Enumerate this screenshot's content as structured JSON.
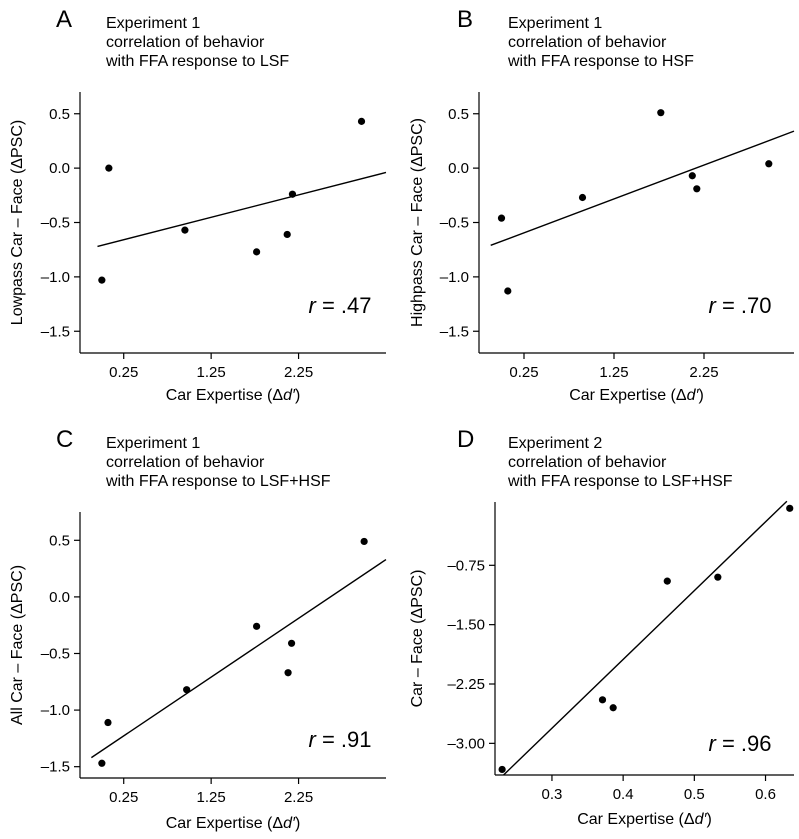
{
  "chart_data": [
    {
      "type": "scatter",
      "panel_letter": "A",
      "title_lines": [
        "Experiment 1",
        "correlation of behavior",
        "with FFA response to LSF"
      ],
      "xlabel_text": "Car Expertise (Δ",
      "xlabel_var": "d′",
      "xlabel_end": ")",
      "ylabel": "Lowpass Car – Face (ΔPSC)",
      "xlim": [
        -0.25,
        3.25
      ],
      "ylim": [
        -1.7,
        0.7
      ],
      "xticks": [
        0.25,
        1.25,
        2.25
      ],
      "xtick_labels": [
        "0.25",
        "1.25",
        "2.25"
      ],
      "yticks": [
        -1.5,
        -1.0,
        -0.5,
        0.0,
        0.5
      ],
      "ytick_labels": [
        "–1.5",
        "–1.0",
        "–0.5",
        "0.0",
        "0.5"
      ],
      "points": [
        {
          "x": 0.0,
          "y": -1.03
        },
        {
          "x": 0.08,
          "y": 0.0
        },
        {
          "x": 0.95,
          "y": -0.57
        },
        {
          "x": 1.77,
          "y": -0.77
        },
        {
          "x": 2.12,
          "y": -0.61
        },
        {
          "x": 2.18,
          "y": -0.24
        },
        {
          "x": 2.97,
          "y": 0.43
        }
      ],
      "fit_line": {
        "x": [
          -0.05,
          3.25
        ],
        "y": [
          -0.72,
          -0.04
        ]
      },
      "r_var": "r",
      "r_value": " = .47"
    },
    {
      "type": "scatter",
      "panel_letter": "B",
      "title_lines": [
        "Experiment 1",
        "correlation of behavior",
        "with FFA response to HSF"
      ],
      "xlabel_text": "Car Expertise (Δ",
      "xlabel_var": "d′",
      "xlabel_end": ")",
      "ylabel": "Highpass Car – Face (ΔPSC)",
      "xlim": [
        -0.25,
        3.25
      ],
      "ylim": [
        -1.7,
        0.7
      ],
      "xticks": [
        0.25,
        1.25,
        2.25
      ],
      "xtick_labels": [
        "0.25",
        "1.25",
        "2.25"
      ],
      "yticks": [
        -1.5,
        -1.0,
        -0.5,
        0.0,
        0.5
      ],
      "ytick_labels": [
        "–1.5",
        "–1.0",
        "–0.5",
        "0.0",
        "0.5"
      ],
      "points": [
        {
          "x": 0.0,
          "y": -0.46
        },
        {
          "x": 0.07,
          "y": -1.13
        },
        {
          "x": 0.9,
          "y": -0.27
        },
        {
          "x": 1.77,
          "y": 0.51
        },
        {
          "x": 2.12,
          "y": -0.07
        },
        {
          "x": 2.17,
          "y": -0.19
        },
        {
          "x": 2.97,
          "y": 0.04
        }
      ],
      "fit_line": {
        "x": [
          -0.12,
          3.25
        ],
        "y": [
          -0.71,
          0.34
        ]
      },
      "r_var": "r",
      "r_value": " = .70"
    },
    {
      "type": "scatter",
      "panel_letter": "C",
      "title_lines": [
        "Experiment 1",
        "correlation of behavior",
        "with FFA response to LSF+HSF"
      ],
      "xlabel_text": "Car Expertise (Δ",
      "xlabel_var": "d′",
      "xlabel_end": ")",
      "ylabel": "All Car – Face (ΔPSC)",
      "xlim": [
        -0.25,
        3.25
      ],
      "ylim": [
        -1.6,
        0.75
      ],
      "xticks": [
        0.25,
        1.25,
        2.25
      ],
      "xtick_labels": [
        "0.25",
        "1.25",
        "2.25"
      ],
      "yticks": [
        -1.5,
        -1.0,
        -0.5,
        0.0,
        0.5
      ],
      "ytick_labels": [
        "–1.5",
        "–1.0",
        "–0.5",
        "0.0",
        "0.5"
      ],
      "points": [
        {
          "x": 0.0,
          "y": -1.47
        },
        {
          "x": 0.07,
          "y": -1.11
        },
        {
          "x": 0.97,
          "y": -0.82
        },
        {
          "x": 1.77,
          "y": -0.26
        },
        {
          "x": 2.13,
          "y": -0.67
        },
        {
          "x": 2.17,
          "y": -0.41
        },
        {
          "x": 3.0,
          "y": 0.49
        }
      ],
      "fit_line": {
        "x": [
          -0.12,
          3.25
        ],
        "y": [
          -1.42,
          0.33
        ]
      },
      "r_var": "r",
      "r_value": " = .91"
    },
    {
      "type": "scatter",
      "panel_letter": "D",
      "title_lines": [
        "Experiment 2",
        "correlation of behavior",
        "with FFA response to LSF+HSF"
      ],
      "xlabel_text": "Car Expertise (Δ",
      "xlabel_var": "d′",
      "xlabel_end": ")",
      "ylabel": "Car – Face (ΔPSC)",
      "xlim": [
        0.22,
        0.64
      ],
      "ylim": [
        -3.4,
        0.05
      ],
      "xticks": [
        0.3,
        0.4,
        0.5,
        0.6
      ],
      "xtick_labels": [
        "0.3",
        "0.4",
        "0.5",
        "0.6"
      ],
      "yticks": [
        -3.0,
        -2.25,
        -1.5,
        -0.75
      ],
      "ytick_labels": [
        "–3.00",
        "–2.25",
        "–1.50",
        "–0.75"
      ],
      "points": [
        {
          "x": 0.23,
          "y": -3.33
        },
        {
          "x": 0.371,
          "y": -2.45
        },
        {
          "x": 0.386,
          "y": -2.55
        },
        {
          "x": 0.462,
          "y": -0.95
        },
        {
          "x": 0.533,
          "y": -0.9
        },
        {
          "x": 0.634,
          "y": -0.03
        }
      ],
      "fit_line": {
        "x": [
          0.232,
          0.63
        ],
        "y": [
          -3.4,
          0.06
        ]
      },
      "r_var": "r",
      "r_value": " = .96"
    }
  ]
}
